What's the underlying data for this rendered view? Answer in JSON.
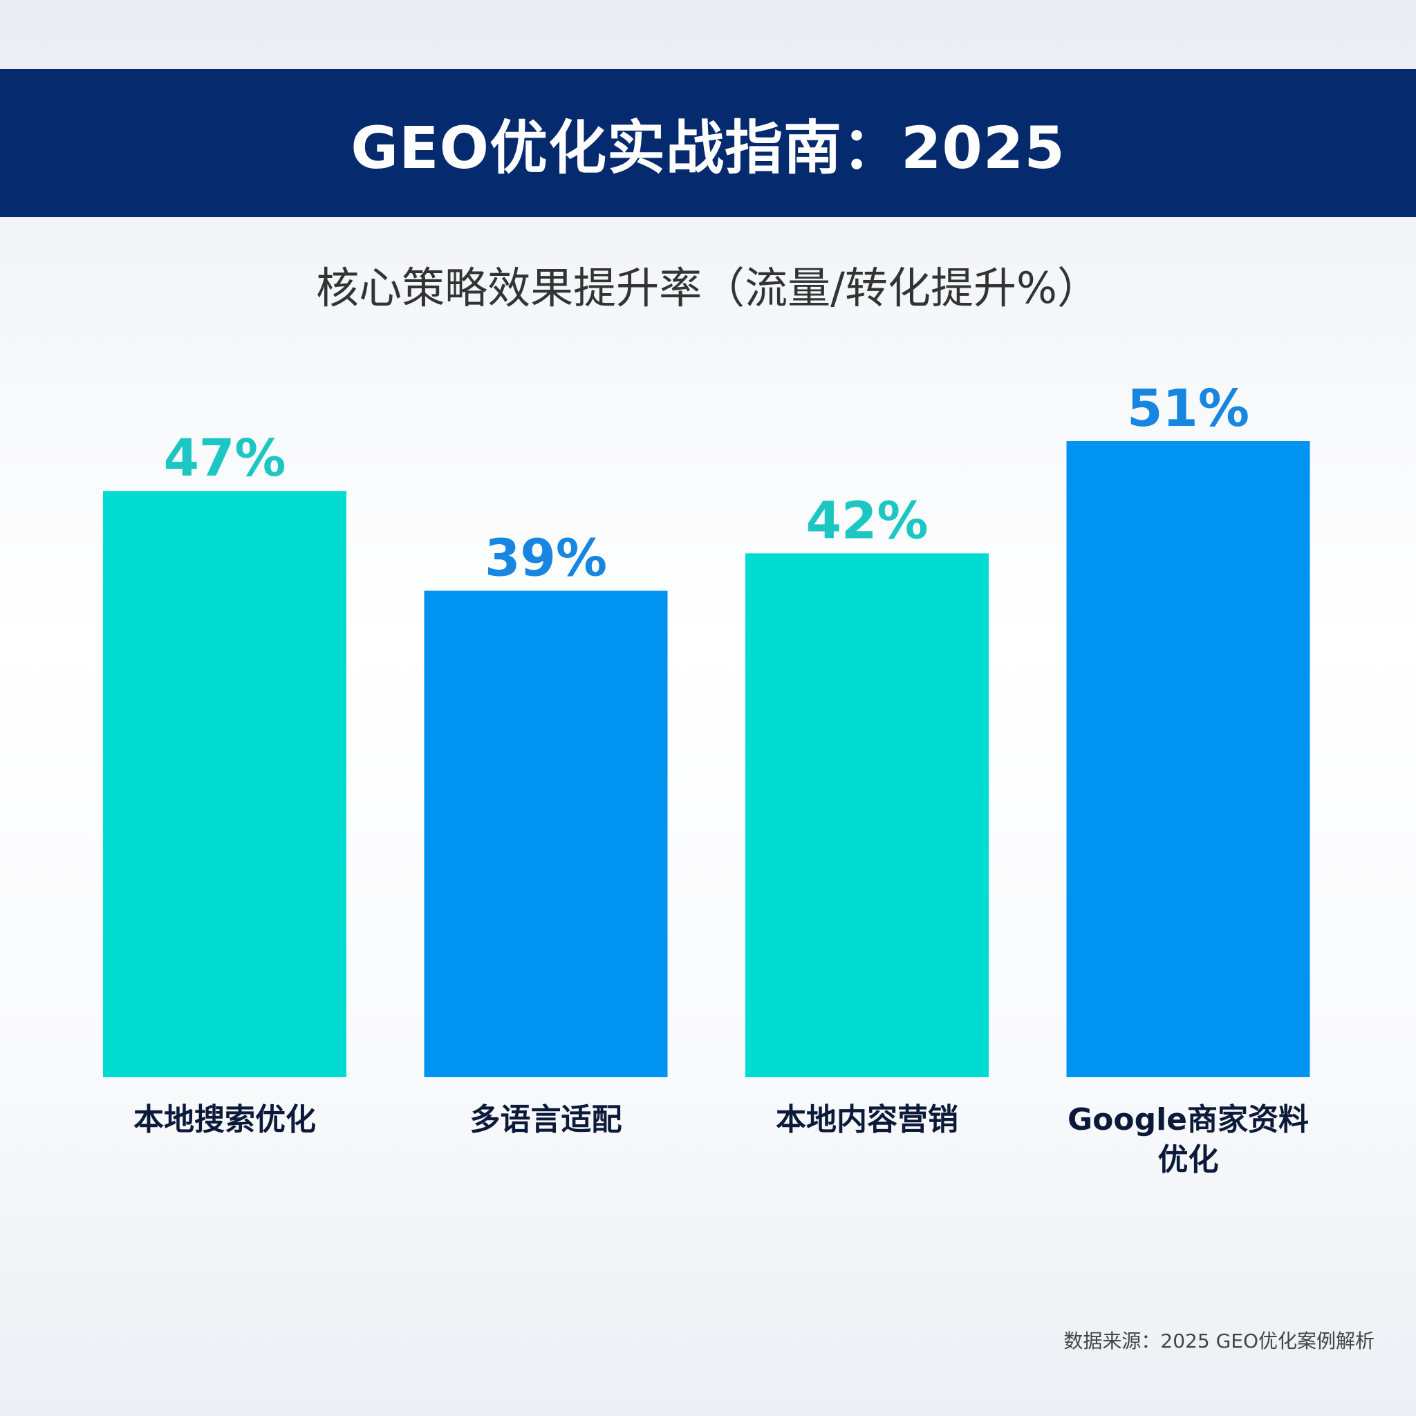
{
  "title": "GEO优化实战指南：2025",
  "subtitle": "核心策略效果提升率（流量/转化提升%）",
  "source": "数据来源：2025 GEO优化案例解析",
  "colors": {
    "title_bar": "#062a6e",
    "teal": "#00dcd2",
    "blue": "#0093f0",
    "teal_label": "#1cc6c2",
    "blue_label": "#1686e0",
    "category_text": "#0c1a3a"
  },
  "chart_data": {
    "type": "bar",
    "categories": [
      [
        "本地搜索优化"
      ],
      [
        "多语言适配"
      ],
      [
        "本地内容营销"
      ],
      [
        "Google商家资料",
        "优化"
      ]
    ],
    "values": [
      47,
      39,
      42,
      51
    ],
    "value_labels": [
      "47%",
      "39%",
      "42%",
      "51%"
    ],
    "bar_colors": [
      "teal",
      "blue",
      "teal",
      "blue"
    ],
    "unit": "%",
    "ylim": [
      0,
      51
    ],
    "grid": false,
    "legend": "none"
  }
}
